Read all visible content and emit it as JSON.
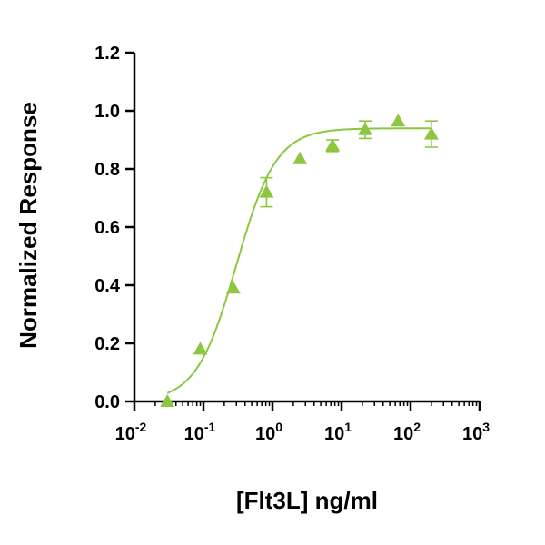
{
  "chart_data": {
    "type": "scatter",
    "xlabel": "[Flt3L] ng/ml",
    "ylabel": "Normalized Response",
    "xscale": "log",
    "xlim": [
      0.01,
      1000
    ],
    "ylim": [
      0,
      1.2
    ],
    "grid": false,
    "x_ticks": [
      {
        "base": "10",
        "exp": "-2",
        "value": 0.01
      },
      {
        "base": "10",
        "exp": "-1",
        "value": 0.1
      },
      {
        "base": "10",
        "exp": "0",
        "value": 1
      },
      {
        "base": "10",
        "exp": "1",
        "value": 10
      },
      {
        "base": "10",
        "exp": "2",
        "value": 100
      },
      {
        "base": "10",
        "exp": "3",
        "value": 1000
      }
    ],
    "y_ticks": [
      "0.0",
      "0.2",
      "0.4",
      "0.6",
      "0.8",
      "1.0",
      "1.2"
    ],
    "series": [
      {
        "marker": "triangle",
        "color": "#8dc63f",
        "points": [
          {
            "x": 0.03,
            "y": 0.0,
            "err": 0.0
          },
          {
            "x": 0.09,
            "y": 0.18,
            "err": 0.0
          },
          {
            "x": 0.27,
            "y": 0.39,
            "err": 0.0
          },
          {
            "x": 0.82,
            "y": 0.72,
            "err": 0.05
          },
          {
            "x": 2.5,
            "y": 0.835,
            "err": 0.0
          },
          {
            "x": 7.4,
            "y": 0.88,
            "err": 0.02
          },
          {
            "x": 22,
            "y": 0.935,
            "err": 0.03
          },
          {
            "x": 66,
            "y": 0.965,
            "err": 0.0
          },
          {
            "x": 200,
            "y": 0.92,
            "err": 0.045
          }
        ],
        "fit": {
          "model": "4PL",
          "bottom": 0.0,
          "top": 0.94,
          "ec50": 0.3,
          "hill": 1.5,
          "x_range": [
            0.03,
            200
          ]
        }
      }
    ]
  }
}
